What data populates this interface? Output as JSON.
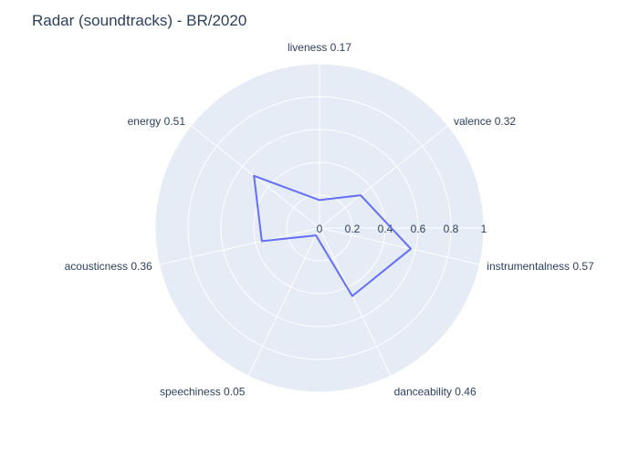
{
  "chart_data": {
    "type": "radar",
    "title": "Radar (soundtracks) - BR/2020",
    "axes": [
      {
        "name": "liveness",
        "value": 0.17,
        "label": "liveness 0.17"
      },
      {
        "name": "valence",
        "value": 0.32,
        "label": "valence 0.32"
      },
      {
        "name": "instrumentalness",
        "value": 0.57,
        "label": "instrumentalness 0.57"
      },
      {
        "name": "danceability",
        "value": 0.46,
        "label": "danceability 0.46"
      },
      {
        "name": "speechiness",
        "value": 0.05,
        "label": "speechiness 0.05"
      },
      {
        "name": "acousticness",
        "value": 0.36,
        "label": "acousticness 0.36"
      },
      {
        "name": "energy",
        "value": 0.51,
        "label": "energy 0.51"
      }
    ],
    "radial_range": [
      0,
      1
    ],
    "radial_ticks": [
      "0",
      "0.2",
      "0.4",
      "0.6",
      "0.8",
      "1"
    ],
    "grid": true,
    "colors": {
      "background": "#e5ecf6",
      "grid": "#ffffff",
      "line": "#636efa",
      "text": "#2a3f5f"
    }
  }
}
